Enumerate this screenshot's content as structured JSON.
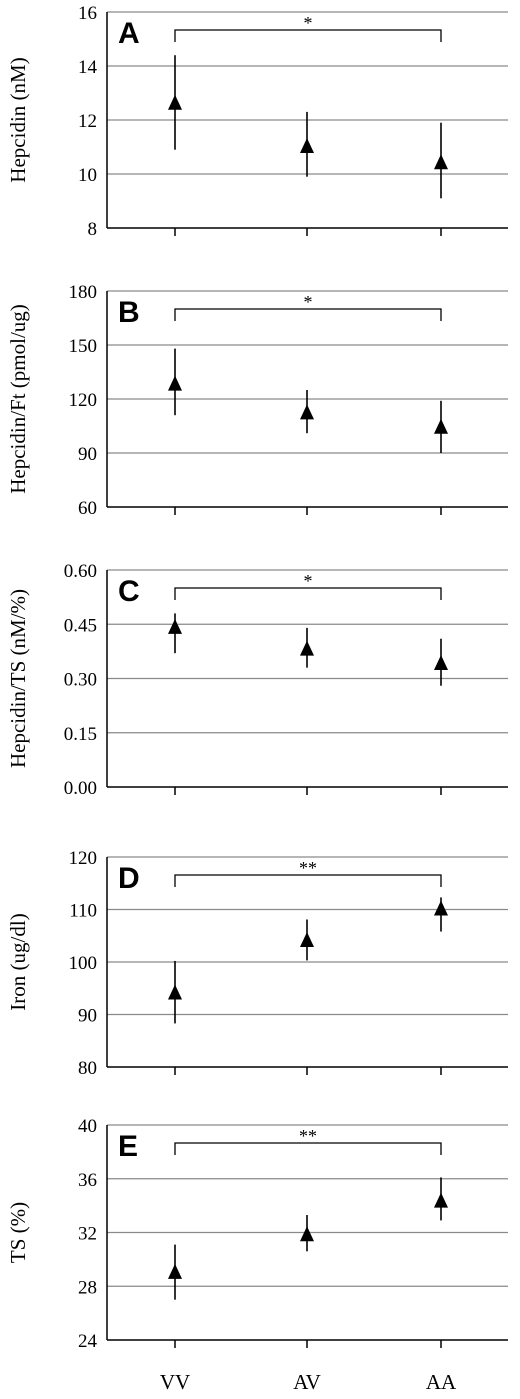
{
  "chart_data": [
    {
      "type": "scatter",
      "panel": "A",
      "ylabel": "Hepcidin (nM)",
      "categories": [
        "VV",
        "AV",
        "AA"
      ],
      "values": [
        12.6,
        11.0,
        10.4
      ],
      "err_low": [
        10.9,
        9.9,
        9.1
      ],
      "err_high": [
        14.4,
        12.3,
        11.9
      ],
      "ylim": [
        8,
        16
      ],
      "yticks": [
        "8",
        "10",
        "12",
        "14",
        "16"
      ],
      "significance": {
        "from": "VV",
        "to": "AA",
        "label": "*"
      },
      "grid": true
    },
    {
      "type": "scatter",
      "panel": "B",
      "ylabel": "Hepcidin/Ft (pmol/ug)",
      "categories": [
        "VV",
        "AV",
        "AA"
      ],
      "values": [
        128,
        112,
        104
      ],
      "err_low": [
        111,
        101,
        90
      ],
      "err_high": [
        148,
        125,
        119
      ],
      "ylim": [
        60,
        180
      ],
      "yticks": [
        "60",
        "90",
        "120",
        "150",
        "180"
      ],
      "significance": {
        "from": "VV",
        "to": "AA",
        "label": "*"
      },
      "grid": true
    },
    {
      "type": "scatter",
      "panel": "C",
      "ylabel": "Hepcidin/TS (nM/%)",
      "categories": [
        "VV",
        "AV",
        "AA"
      ],
      "values": [
        0.44,
        0.38,
        0.34
      ],
      "err_low": [
        0.37,
        0.33,
        0.28
      ],
      "err_high": [
        0.48,
        0.44,
        0.41
      ],
      "ylim": [
        0,
        0.6
      ],
      "yticks": [
        "0.00",
        "0.15",
        "0.30",
        "0.45",
        "0.60"
      ],
      "significance": {
        "from": "VV",
        "to": "AA",
        "label": "*"
      },
      "grid": true
    },
    {
      "type": "scatter",
      "panel": "D",
      "ylabel": "Iron (ug/dl)",
      "categories": [
        "VV",
        "AV",
        "AA"
      ],
      "values": [
        94,
        104,
        110
      ],
      "err_low": [
        88.3,
        100.3,
        105.8
      ],
      "err_high": [
        100.2,
        108.1,
        112.3
      ],
      "ylim": [
        80,
        120
      ],
      "yticks": [
        "80",
        "90",
        "100",
        "110",
        "120"
      ],
      "significance": {
        "from": "VV",
        "to": "AA",
        "label": "**"
      },
      "grid": true
    },
    {
      "type": "scatter",
      "panel": "E",
      "ylabel": "TS (%)",
      "categories": [
        "VV",
        "AV",
        "AA"
      ],
      "values": [
        29,
        31.8,
        34.3
      ],
      "err_low": [
        27,
        30.6,
        32.9
      ],
      "err_high": [
        31.1,
        33.3,
        36.1
      ],
      "ylim": [
        24,
        40
      ],
      "yticks": [
        "24",
        "28",
        "32",
        "36",
        "40"
      ],
      "significance": {
        "from": "VV",
        "to": "AA",
        "label": "**"
      },
      "grid": true
    }
  ]
}
